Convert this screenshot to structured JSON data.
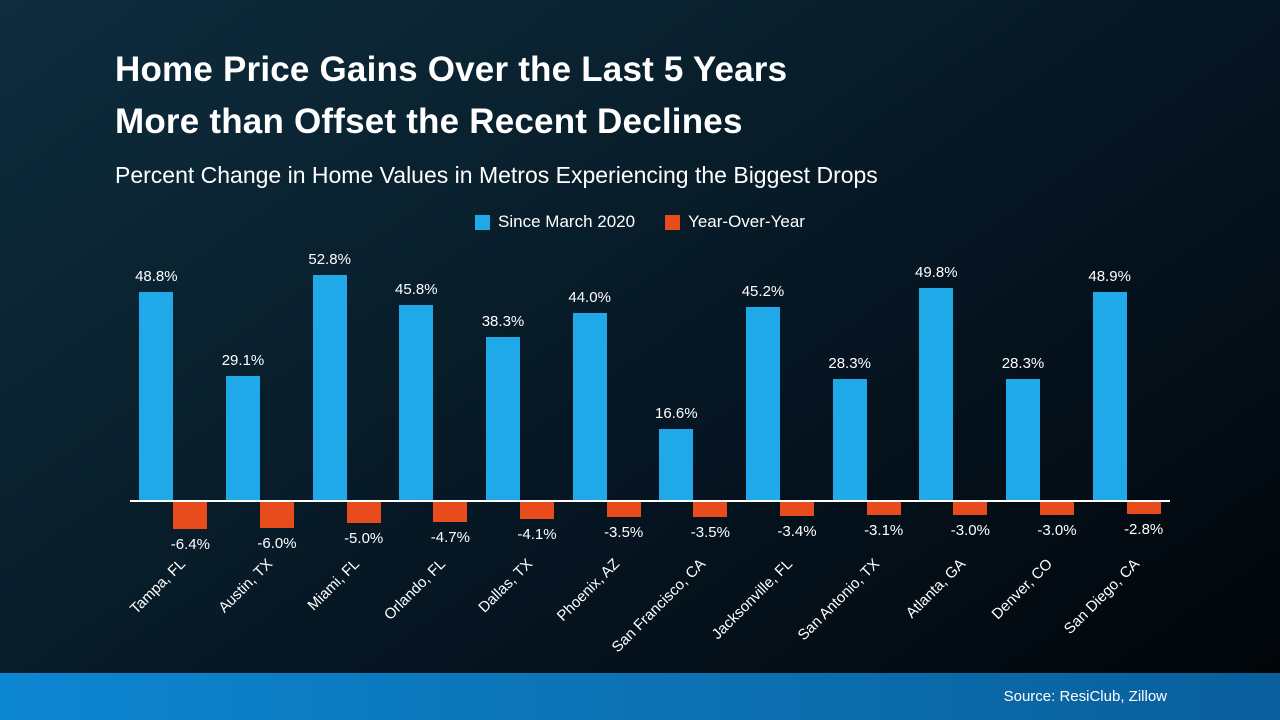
{
  "header": {
    "title_line1": "Home Price Gains Over the Last 5 Years",
    "title_line2": "More than Offset the Recent Declines",
    "subtitle": "Percent Change in Home Values in Metros Experiencing the Biggest Drops"
  },
  "legend": {
    "items": [
      {
        "label": "Since March 2020",
        "color": "#1fa9e8"
      },
      {
        "label": "Year-Over-Year",
        "color": "#e84b1c"
      }
    ]
  },
  "footer": {
    "source": "Source: ResiClub, Zillow"
  },
  "chart_data": {
    "type": "bar",
    "title": "Home Price Gains Over the Last 5 Years More than Offset the Recent Declines",
    "subtitle": "Percent Change in Home Values in Metros Experiencing the Biggest Drops",
    "categories": [
      "Tampa, FL",
      "Austin, TX",
      "Miami, FL",
      "Orlando, FL",
      "Dallas, TX",
      "Phoenix, AZ",
      "San Francisco, CA",
      "Jacksonville, FL",
      "San Antonio, TX",
      "Atlanta, GA",
      "Denver, CO",
      "San Diego, CA"
    ],
    "series": [
      {
        "name": "Since March 2020",
        "color": "#1fa9e8",
        "values": [
          48.8,
          29.1,
          52.8,
          45.8,
          38.3,
          44.0,
          16.6,
          45.2,
          28.3,
          49.8,
          28.3,
          48.9
        ]
      },
      {
        "name": "Year-Over-Year",
        "color": "#e84b1c",
        "values": [
          -6.4,
          -6.0,
          -5.0,
          -4.7,
          -4.1,
          -3.5,
          -3.5,
          -3.4,
          -3.1,
          -3.0,
          -3.0,
          -2.8
        ]
      }
    ],
    "value_label_format": "one-decimal-percent",
    "ylim": [
      -8,
      56
    ],
    "grid": false,
    "legend_position": "top",
    "xlabel": "",
    "ylabel": ""
  }
}
